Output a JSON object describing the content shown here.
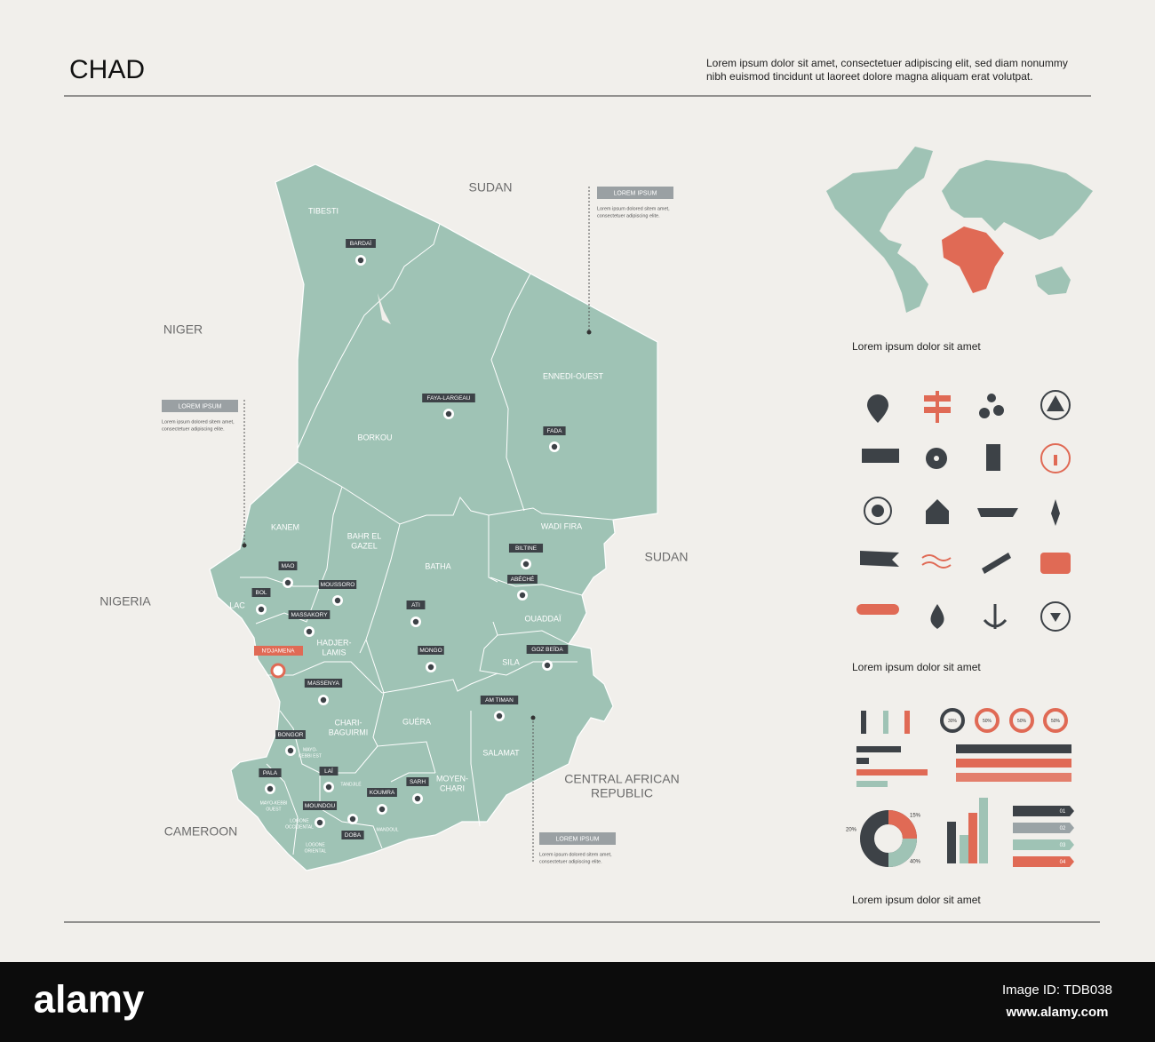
{
  "header": {
    "title": "CHAD",
    "description": [
      "Lorem ipsum dolor sit amet, consectetuer adipiscing elit, sed diam nonummy",
      "nibh euismod tincidunt ut laoreet dolore magna aliquam erat volutpat."
    ]
  },
  "neighbors": [
    [
      "SUDAN"
    ],
    [
      "NIGER"
    ],
    [
      "NIGERIA"
    ],
    [
      "SUDAN"
    ],
    [
      "CENTRAL AFRICAN",
      "REPUBLIC"
    ],
    [
      "CAMEROON"
    ]
  ],
  "regions": [
    [
      "TIBESTI"
    ],
    [
      "BORKOU"
    ],
    [
      "ENNEDI-OUEST"
    ],
    [
      "KANEM"
    ],
    [
      "BAHR EL",
      "GAZEL"
    ],
    [
      "BATHA"
    ],
    [
      "WADI FIRA"
    ],
    [
      "LAC"
    ],
    [
      "HADJER-",
      "LAMIS"
    ],
    [
      "OUADDAÏ"
    ],
    [
      "SILA"
    ],
    [
      "CHARI-",
      "BAGUIRMI"
    ],
    [
      "GUÉRA"
    ],
    [
      "SALAMAT"
    ],
    [
      "MOYEN-",
      "CHARI"
    ]
  ],
  "small_regions": [
    [
      "MAYO-",
      "KEBBI EST"
    ],
    [
      "MAYO-KEBBI",
      "OUEST"
    ],
    [
      "TANDJILÉ"
    ],
    [
      "LOGONE",
      "OCCIDENTAL"
    ],
    [
      "LOGONE",
      "ORIENTAL"
    ],
    [
      "MANDOUL"
    ]
  ],
  "cities": [
    "BARDAÏ",
    "FAYA-LARGEAU",
    "FADA",
    "BILTINE",
    "ABÉCHÉ",
    "MAO",
    "MOUSSORO",
    "BOL",
    "MASSAKORY",
    "ATI",
    "MONGO",
    "GOZ BEÏDA",
    "MASSENYA",
    "AM TIMAN",
    "BONGOR",
    "LAÏ",
    "PALA",
    "SARH",
    "KOUMRA",
    "MOUNDOU",
    "DOBA"
  ],
  "capital": "N'DJAMENA",
  "callouts": [
    {
      "title": "LOREM IPSUM",
      "text": [
        "Lorem ipsum dolored sitem amet,",
        "consectetuer adipiscing elite."
      ]
    },
    {
      "title": "LOREM IPSUM",
      "text": [
        "Lorem ipsum dolored sitem amet,",
        "consectetuer adipiscing elite."
      ]
    },
    {
      "title": "LOREM IPSUM",
      "text": [
        "Lorem ipsum dolored sitem amet,",
        "consectetuer adipiscing elite."
      ]
    }
  ],
  "captions": [
    "Lorem ipsum dolor sit amet",
    "Lorem ipsum dolor sit amet",
    "Lorem ipsum dolor sit amet"
  ],
  "infographic": {
    "donut_labels": [
      "30%",
      "50%",
      "50%",
      "50%"
    ],
    "pie_labels": [
      "15%",
      "20%",
      "40%"
    ],
    "steps": [
      "01",
      "02",
      "03",
      "04"
    ]
  },
  "footer": {
    "brand": "alamy",
    "image_id": "Image ID: TDB038",
    "site": "www.alamy.com"
  }
}
